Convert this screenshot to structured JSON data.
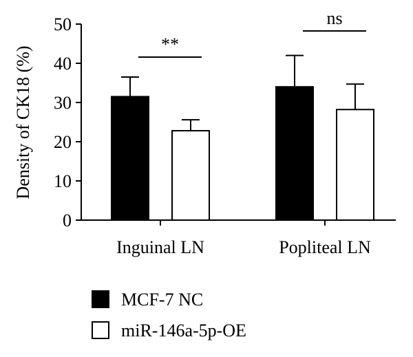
{
  "chart_data": {
    "type": "bar",
    "title": "",
    "xlabel": "",
    "ylabel": "Density of CK18 (%)",
    "ylim": [
      0,
      50
    ],
    "yticks": [
      0,
      10,
      20,
      30,
      40,
      50
    ],
    "categories": [
      "Inguinal LN",
      "Popliteal LN"
    ],
    "series": [
      {
        "name": "MCF-7 NC",
        "values": [
          31.5,
          34.0
        ],
        "errors": [
          5.0,
          8.0
        ],
        "fill": "#000000"
      },
      {
        "name": "miR-146a-5p-OE",
        "values": [
          22.8,
          28.2
        ],
        "errors": [
          2.8,
          6.5
        ],
        "fill": "#ffffff"
      }
    ],
    "significance": [
      "**",
      "ns"
    ],
    "legend_position": "bottom-left"
  }
}
